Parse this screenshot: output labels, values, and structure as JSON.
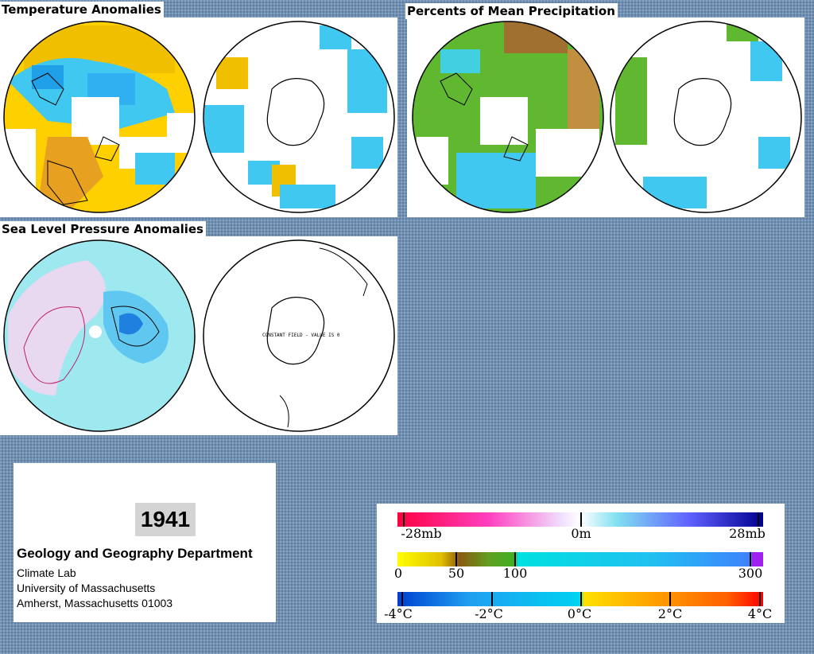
{
  "panels": {
    "temperature": {
      "title": "Temperature Anomalies"
    },
    "precipitation": {
      "title": "Percents of Mean Precipitation"
    },
    "pressure": {
      "title": "Sea Level Pressure Anomalies",
      "constant_note": "CONSTANT FIELD - VALUE IS 0"
    }
  },
  "info": {
    "year": "1941",
    "department": "Geology and Geography Department",
    "lab": "Climate Lab",
    "university": "University of Massachusetts",
    "address": "Amherst, Massachusetts 01003"
  },
  "legend": {
    "pressure": {
      "labels": [
        "-28mb",
        "0m",
        "28mb"
      ],
      "colors": [
        "#ff0040",
        "#ffffff",
        "#000090"
      ]
    },
    "precipitation": {
      "labels": [
        "0",
        "50",
        "100",
        "300"
      ],
      "colors": [
        "#ffff00",
        "#8a5a10",
        "#40b020",
        "#00e0e0",
        "#4080ff",
        "#a020f0"
      ]
    },
    "temperature": {
      "labels": [
        "-4°C",
        "-2°C",
        "0°C",
        "2°C",
        "4°C"
      ],
      "colors": [
        "#0040d0",
        "#20a0f0",
        "#00e0f0",
        "#ffe000",
        "#ff6000",
        "#ff0000"
      ]
    }
  }
}
